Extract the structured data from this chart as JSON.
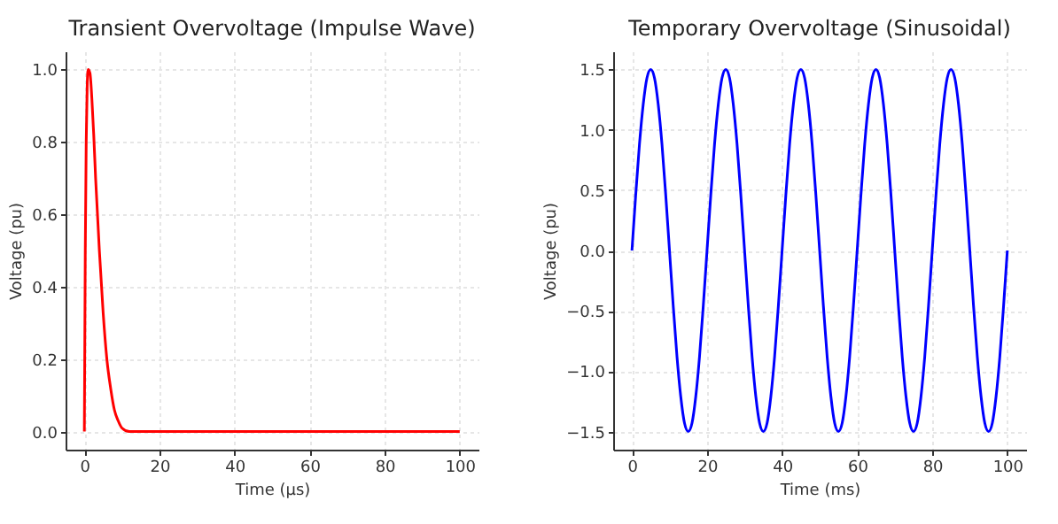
{
  "chart_data": [
    {
      "type": "line",
      "title": "Transient Overvoltage (Impulse Wave)",
      "xlabel": "Time (μs)",
      "ylabel": "Voltage (pu)",
      "x": [
        0,
        0.25,
        0.5,
        0.75,
        1,
        1.5,
        2,
        2.5,
        3,
        4,
        5,
        6,
        7,
        8,
        9,
        10,
        12,
        15,
        20,
        50,
        100
      ],
      "series": [
        {
          "color": "#ff0000",
          "values": [
            0,
            0.5,
            0.8,
            0.95,
            1.0,
            0.99,
            0.92,
            0.82,
            0.7,
            0.5,
            0.33,
            0.2,
            0.12,
            0.06,
            0.03,
            0.01,
            0,
            0,
            0,
            0,
            0
          ]
        }
      ],
      "xlim": [
        -5,
        105
      ],
      "ylim": [
        -0.05,
        1.05
      ],
      "xticks": [
        0,
        20,
        40,
        60,
        80,
        100
      ],
      "yticks": [
        {
          "value": 0,
          "label": "0.0"
        },
        {
          "value": 0.2,
          "label": "0.2"
        },
        {
          "value": 0.4,
          "label": "0.4"
        },
        {
          "value": 0.6,
          "label": "0.6"
        },
        {
          "value": 0.8,
          "label": "0.8"
        },
        {
          "value": 1,
          "label": "1.0"
        }
      ],
      "grid": true
    },
    {
      "type": "line",
      "title": "Temporary Overvoltage (Sinusoidal)",
      "xlabel": "Time (ms)",
      "ylabel": "Voltage (pu)",
      "x": [
        0,
        1,
        2,
        3,
        4,
        5,
        6,
        7,
        8,
        9,
        10,
        11,
        12,
        13,
        14,
        15,
        16,
        17,
        18,
        19,
        20,
        21,
        22,
        23,
        24,
        25,
        26,
        27,
        28,
        29,
        30,
        31,
        32,
        33,
        34,
        35,
        36,
        37,
        38,
        39,
        40,
        41,
        42,
        43,
        44,
        45,
        46,
        47,
        48,
        49,
        50,
        51,
        52,
        53,
        54,
        55,
        56,
        57,
        58,
        59,
        60,
        61,
        62,
        63,
        64,
        65,
        66,
        67,
        68,
        69,
        70,
        71,
        72,
        73,
        74,
        75,
        76,
        77,
        78,
        79,
        80,
        81,
        82,
        83,
        84,
        85,
        86,
        87,
        88,
        89,
        90,
        91,
        92,
        93,
        94,
        95,
        96,
        97,
        98,
        99,
        100
      ],
      "series": [
        {
          "color": "#0000ff",
          "values": [
            0,
            0.46,
            0.88,
            1.21,
            1.43,
            1.5,
            1.43,
            1.21,
            0.88,
            0.46,
            0,
            -0.46,
            -0.88,
            -1.21,
            -1.43,
            -1.5,
            -1.43,
            -1.21,
            -0.88,
            -0.46,
            0,
            0.46,
            0.88,
            1.21,
            1.43,
            1.5,
            1.43,
            1.21,
            0.88,
            0.46,
            0,
            -0.46,
            -0.88,
            -1.21,
            -1.43,
            -1.5,
            -1.43,
            -1.21,
            -0.88,
            -0.46,
            0,
            0.46,
            0.88,
            1.21,
            1.43,
            1.5,
            1.43,
            1.21,
            0.88,
            0.46,
            0,
            -0.46,
            -0.88,
            -1.21,
            -1.43,
            -1.5,
            -1.43,
            -1.21,
            -0.88,
            -0.46,
            0,
            0.46,
            0.88,
            1.21,
            1.43,
            1.5,
            1.43,
            1.21,
            0.88,
            0.46,
            0,
            -0.46,
            -0.88,
            -1.21,
            -1.43,
            -1.5,
            -1.43,
            -1.21,
            -0.88,
            -0.46,
            0,
            0.46,
            0.88,
            1.21,
            1.43,
            1.5,
            1.43,
            1.21,
            0.88,
            0.46,
            0,
            -0.46,
            -0.88,
            -1.21,
            -1.43,
            -1.5,
            -1.43,
            -1.21,
            -0.88,
            -0.46,
            0
          ]
        }
      ],
      "xlim": [
        -5,
        105
      ],
      "ylim": [
        -1.65,
        1.65
      ],
      "xticks": [
        0,
        20,
        40,
        60,
        80,
        100
      ],
      "yticks": [
        {
          "value": -1.5,
          "label": "−1.5"
        },
        {
          "value": -1,
          "label": "−1.0"
        },
        {
          "value": -0.5,
          "label": "−0.5"
        },
        {
          "value": 0,
          "label": "0.0"
        },
        {
          "value": 0.5,
          "label": "0.5"
        },
        {
          "value": 1,
          "label": "1.0"
        },
        {
          "value": 1.5,
          "label": "1.5"
        }
      ],
      "grid": true
    }
  ]
}
